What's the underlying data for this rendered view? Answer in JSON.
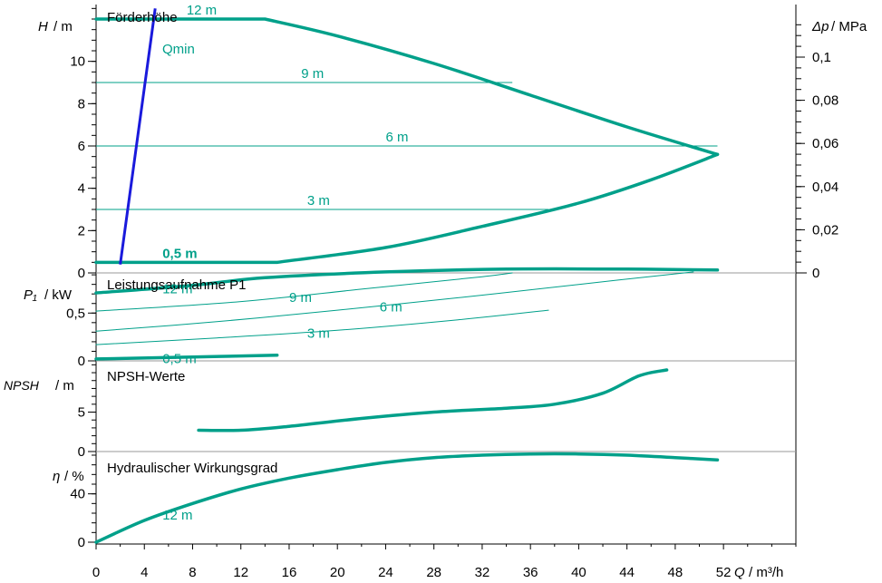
{
  "colors": {
    "curve": "#00a08a",
    "qmin": "#1a1adc",
    "axis": "#000000",
    "grid": "#9a9a9a"
  },
  "x_axis": {
    "label_sym": "Q",
    "label_unit": "/ m³/h",
    "ticks": [
      0,
      4,
      8,
      12,
      16,
      20,
      24,
      28,
      32,
      36,
      40,
      44,
      48,
      52
    ],
    "range": [
      0,
      58
    ]
  },
  "chart_data": [
    {
      "type": "line",
      "title": "Förderhöhe",
      "ylabel_sym": "H",
      "ylabel_unit": "/ m",
      "ylim": [
        0,
        12.6
      ],
      "yticks": [
        0,
        2,
        4,
        6,
        8,
        10
      ],
      "right_axis": {
        "label_sym": "Δp",
        "label_unit": "/ MPa",
        "ticks": [
          "0",
          "0,02",
          "0,04",
          "0,06",
          "0,08",
          "0,1"
        ],
        "values": [
          0,
          0.02,
          0.04,
          0.06,
          0.08,
          0.1
        ],
        "scale_m_per_mpa": 102
      },
      "envelope_upper": {
        "x": [
          0,
          14,
          20,
          28,
          36,
          44,
          51.5
        ],
        "y": [
          12,
          12,
          11.2,
          9.9,
          8.4,
          6.9,
          5.6
        ]
      },
      "envelope_lower": {
        "x": [
          0,
          15,
          24,
          32,
          40,
          46,
          51.5
        ],
        "y": [
          0.5,
          0.5,
          1.2,
          2.2,
          3.3,
          4.4,
          5.6
        ]
      },
      "levels": [
        {
          "label": "12 m",
          "y": 12,
          "label_x": 7.5
        },
        {
          "label": "9 m",
          "y": 9,
          "x_end": 34.5,
          "label_x": 17
        },
        {
          "label": "6 m",
          "y": 6,
          "x_end": 51.5,
          "label_x": 24
        },
        {
          "label": "3 m",
          "y": 3,
          "x_end": 37.5,
          "label_x": 17.5
        },
        {
          "label": "0,5 m",
          "y": 0.5,
          "label_x": 5.5,
          "bold": true
        }
      ],
      "qmin": {
        "label": "Qmin",
        "x": [
          2,
          4.9
        ],
        "y": [
          0.4,
          12.5
        ]
      }
    },
    {
      "type": "line",
      "title": "Leistungsaufnahme P1",
      "ylabel_sym": "P₁",
      "ylabel_unit": "/ kW",
      "ylim": [
        0,
        0.92
      ],
      "yticks": [
        0,
        0.5
      ],
      "ytick_labels": [
        "0",
        "0,5"
      ],
      "series": [
        {
          "label": "12 m",
          "label_x": 5.5,
          "x": [
            0,
            8,
            14,
            24,
            34,
            44,
            51.5
          ],
          "y": [
            0.71,
            0.79,
            0.87,
            0.93,
            0.96,
            0.96,
            0.95
          ],
          "bold": true
        },
        {
          "label": "9 m",
          "label_x": 16,
          "x": [
            0,
            12,
            22,
            32,
            34.5
          ],
          "y": [
            0.52,
            0.62,
            0.75,
            0.88,
            0.92
          ]
        },
        {
          "label": "6 m",
          "label_x": 23.5,
          "x": [
            0,
            10,
            20,
            30,
            40,
            49.5
          ],
          "y": [
            0.31,
            0.41,
            0.53,
            0.66,
            0.8,
            0.93
          ]
        },
        {
          "label": "3 m",
          "label_x": 17.5,
          "x": [
            0,
            10,
            20,
            30,
            37.5
          ],
          "y": [
            0.17,
            0.24,
            0.32,
            0.43,
            0.53
          ]
        },
        {
          "label": "0,5 m",
          "label_x": 5.5,
          "x": [
            0,
            8,
            15
          ],
          "y": [
            0.02,
            0.04,
            0.06
          ],
          "bold": true
        }
      ]
    },
    {
      "type": "line",
      "title": "NPSH-Werte",
      "ylabel_sym": "NPSH",
      "ylabel_unit": "/ m",
      "ylim": [
        0,
        11.5
      ],
      "yticks": [
        0,
        5
      ],
      "series": [
        {
          "name": "NPSH",
          "x": [
            8.5,
            12,
            16,
            22,
            28,
            34,
            38,
            42,
            45,
            47.3
          ],
          "y": [
            2.7,
            2.7,
            3.2,
            4.2,
            5,
            5.5,
            6,
            7.4,
            9.6,
            12.2
          ]
        }
      ]
    },
    {
      "type": "line",
      "title": "Hydraulischer Wirkungsgrad",
      "ylabel_sym": "η",
      "ylabel_unit": "/ %",
      "ylim": [
        0,
        75
      ],
      "yticks": [
        0,
        40
      ],
      "series": [
        {
          "label": "12 m",
          "label_x": 5.5,
          "x": [
            0,
            4,
            8,
            12,
            16,
            20,
            24,
            28,
            32,
            36,
            40,
            44,
            48,
            51.5
          ],
          "y": [
            0,
            18,
            32,
            44,
            53,
            60,
            66,
            70,
            72,
            73,
            73,
            72,
            70,
            68
          ]
        }
      ]
    }
  ]
}
